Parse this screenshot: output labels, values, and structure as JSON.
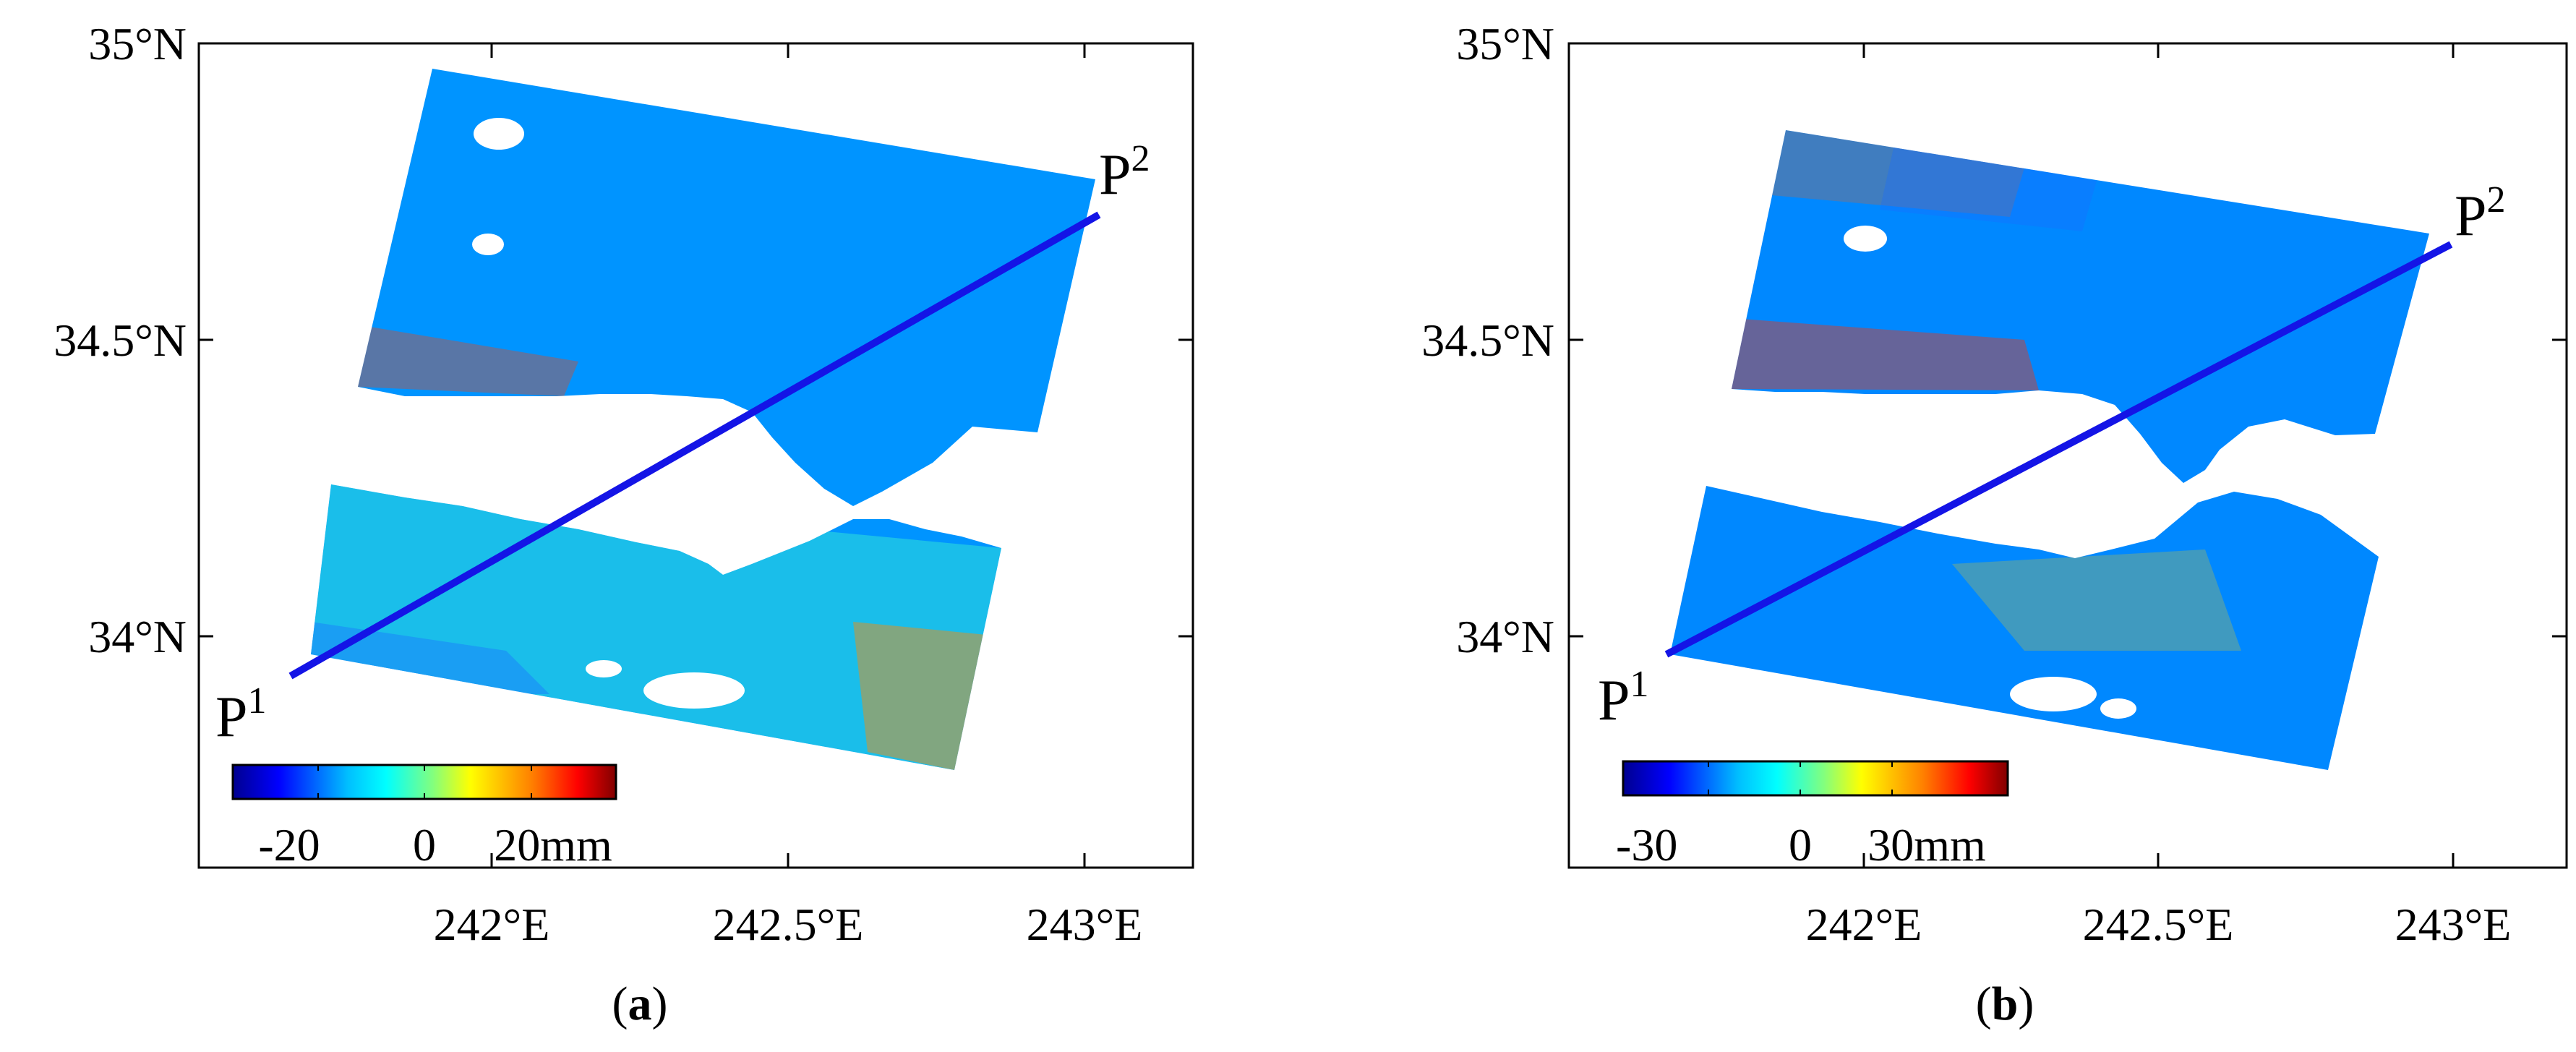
{
  "panels": [
    {
      "id": "a",
      "caption": {
        "open": "(",
        "letter": "a",
        "close": ")"
      },
      "y_ticks": [
        "35°N",
        "34.5°N",
        "34°N"
      ],
      "x_ticks": [
        "242°E",
        "242.5°E",
        "243°E"
      ],
      "colorbar": {
        "labels": [
          "-20",
          "0",
          "20mm"
        ],
        "min": -20,
        "max": 20,
        "unit": "mm"
      },
      "profile": {
        "start": {
          "label": "P",
          "sup": "1",
          "lon": 241.66,
          "lat": 33.93
        },
        "end": {
          "label": "P",
          "sup": "2",
          "lon": 243.03,
          "lat": 34.7
        }
      }
    },
    {
      "id": "b",
      "caption": {
        "open": "(",
        "letter": "b",
        "close": ")"
      },
      "y_ticks": [
        "35°N",
        "34.5°N",
        "34°N"
      ],
      "x_ticks": [
        "242°E",
        "242.5°E",
        "243°E"
      ],
      "colorbar": {
        "labels": [
          "-30",
          "0",
          "30mm"
        ],
        "min": -30,
        "max": 30,
        "unit": "mm"
      },
      "profile": {
        "start": {
          "label": "P",
          "sup": "1",
          "lon": 241.7,
          "lat": 33.97
        },
        "end": {
          "label": "P",
          "sup": "2",
          "lon": 243.0,
          "lat": 34.65
        }
      }
    }
  ],
  "colors": {
    "profile_line": "#1414e6",
    "colormap": [
      "#00008f",
      "#0000ff",
      "#00bfff",
      "#00ffff",
      "#80ff80",
      "#ffff00",
      "#ff8000",
      "#ff0000",
      "#800000"
    ]
  }
}
